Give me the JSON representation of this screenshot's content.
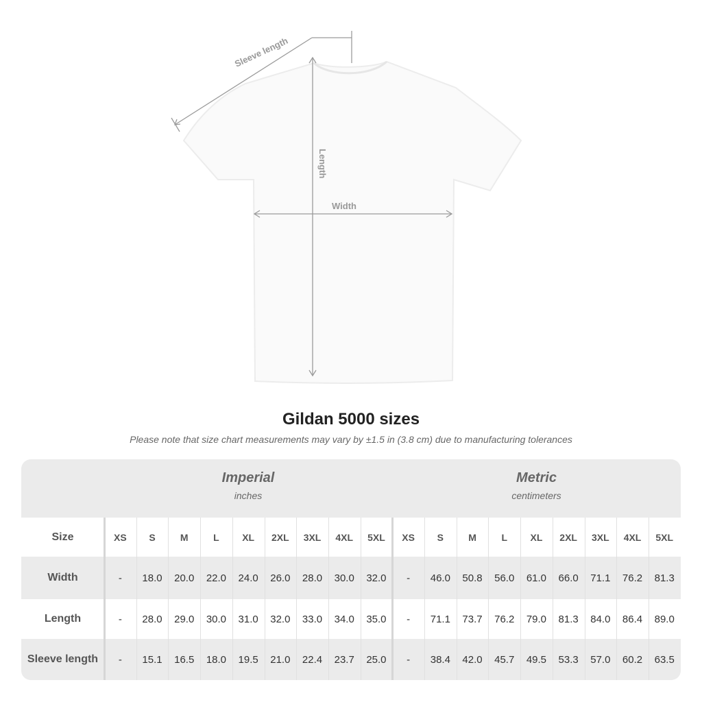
{
  "diagram": {
    "labels": {
      "sleeve": "Sleeve length",
      "length": "Length",
      "width": "Width"
    },
    "colors": {
      "shirt": "#fafafa",
      "measure_lines": "#9a9a9a"
    }
  },
  "title": "Gildan 5000 sizes",
  "note": "Please note that size chart measurements may vary by ±1.5 in (3.8 cm) due to manufacturing tolerances",
  "table": {
    "imperial": {
      "title": "Imperial",
      "unit": "inches"
    },
    "metric": {
      "title": "Metric",
      "unit": "centimeters"
    },
    "size_label": "Size",
    "sizes": [
      "XS",
      "S",
      "M",
      "L",
      "XL",
      "2XL",
      "3XL",
      "4XL",
      "5XL"
    ],
    "rows": [
      {
        "label": "Width",
        "imperial": [
          "-",
          "18.0",
          "20.0",
          "22.0",
          "24.0",
          "26.0",
          "28.0",
          "30.0",
          "32.0"
        ],
        "metric": [
          "-",
          "46.0",
          "50.8",
          "56.0",
          "61.0",
          "66.0",
          "71.1",
          "76.2",
          "81.3"
        ]
      },
      {
        "label": "Length",
        "imperial": [
          "-",
          "28.0",
          "29.0",
          "30.0",
          "31.0",
          "32.0",
          "33.0",
          "34.0",
          "35.0"
        ],
        "metric": [
          "-",
          "71.1",
          "73.7",
          "76.2",
          "79.0",
          "81.3",
          "84.0",
          "86.4",
          "89.0"
        ]
      },
      {
        "label": "Sleeve length",
        "imperial": [
          "-",
          "15.1",
          "16.5",
          "18.0",
          "19.5",
          "21.0",
          "22.4",
          "23.7",
          "25.0"
        ],
        "metric": [
          "-",
          "38.4",
          "42.0",
          "45.7",
          "49.5",
          "53.3",
          "57.0",
          "60.2",
          "63.5"
        ]
      }
    ],
    "colors": {
      "shaded": "#ebebeb",
      "plain": "#ffffff"
    }
  }
}
